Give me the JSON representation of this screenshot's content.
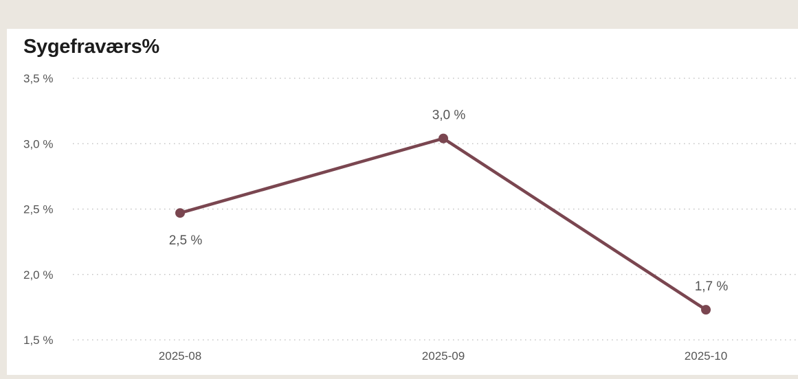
{
  "chart_data": {
    "type": "line",
    "title": "Sygefraværs%",
    "categories": [
      "2025-08",
      "2025-09",
      "2025-10"
    ],
    "series": [
      {
        "values": [
          2.47,
          3.04,
          1.73
        ],
        "labels": [
          "2,5 %",
          "3,0 %",
          "1,7 %"
        ]
      }
    ],
    "y_ticks": [
      {
        "value": 3.5,
        "label": "3,5 %"
      },
      {
        "value": 3.0,
        "label": "3,0 %"
      },
      {
        "value": 2.5,
        "label": "2,5 %"
      },
      {
        "value": 2.0,
        "label": "2,0 %"
      },
      {
        "value": 1.5,
        "label": "1,5 %"
      }
    ],
    "ylim": [
      1.5,
      3.5
    ],
    "grid": true,
    "line_color": "#7a4650",
    "label_positions": [
      "below",
      "above",
      "above"
    ]
  }
}
